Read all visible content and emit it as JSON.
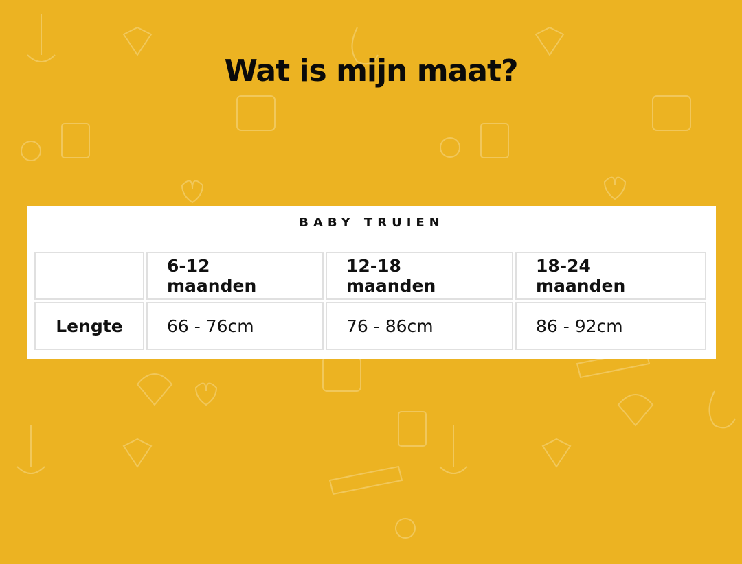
{
  "page": {
    "title": "Wat is mijn maat?",
    "background_color": "#ecb322"
  },
  "size_table": {
    "caption": "BABY TRUIEN",
    "headers": [
      "",
      "6-12 maanden",
      "12-18 maanden",
      "18-24 maanden"
    ],
    "rows": [
      {
        "label": "Lengte",
        "values": [
          "66 - 76cm",
          "76 - 86cm",
          "86 - 92cm"
        ]
      }
    ]
  }
}
